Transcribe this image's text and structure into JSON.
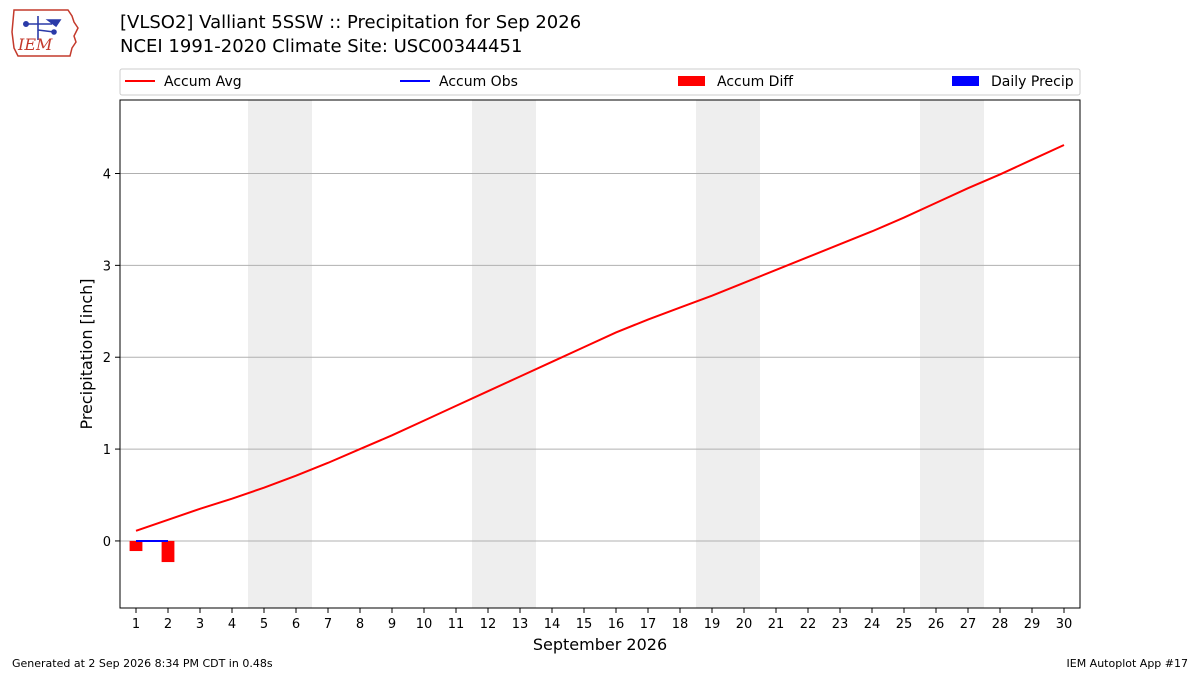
{
  "header": {
    "title_line1": "[VLSO2] Valliant 5SSW :: Precipitation for Sep 2026",
    "title_line2": "NCEI 1991-2020 Climate Site: USC00344451",
    "logo_text": "IEM"
  },
  "footer": {
    "generated": "Generated at 2 Sep 2026 8:34 PM CDT in 0.48s",
    "app": "IEM Autoplot App #17"
  },
  "colors": {
    "accum_avg": "#ff0000",
    "accum_obs": "#0000ff",
    "accum_diff": "#ff0000",
    "daily_precip": "#0000ff",
    "weekend_shade": "#eeeeee",
    "grid": "#b0b0b0"
  },
  "chart_data": {
    "type": "line",
    "xlabel": "September 2026",
    "ylabel": "Precipitation [inch]",
    "x": [
      1,
      2,
      3,
      4,
      5,
      6,
      7,
      8,
      9,
      10,
      11,
      12,
      13,
      14,
      15,
      16,
      17,
      18,
      19,
      20,
      21,
      22,
      23,
      24,
      25,
      26,
      27,
      28,
      29,
      30
    ],
    "xlim": [
      0.5,
      30.5
    ],
    "ylim": [
      -0.73,
      4.8
    ],
    "yticks": [
      0,
      1,
      2,
      3,
      4
    ],
    "grid": "horizontal",
    "legend_position": "top",
    "legend": [
      {
        "label": "Accum Avg",
        "kind": "line",
        "color": "#ff0000"
      },
      {
        "label": "Accum Obs",
        "kind": "line",
        "color": "#0000ff"
      },
      {
        "label": "Accum Diff",
        "kind": "bar",
        "color": "#ff0000"
      },
      {
        "label": "Daily Precip",
        "kind": "bar",
        "color": "#0000ff"
      }
    ],
    "weekend_days": [
      5,
      6,
      12,
      13,
      19,
      20,
      26,
      27
    ],
    "series": [
      {
        "name": "Accum Avg",
        "type": "line",
        "values": [
          0.11,
          0.23,
          0.35,
          0.46,
          0.58,
          0.71,
          0.85,
          1.0,
          1.15,
          1.31,
          1.47,
          1.63,
          1.79,
          1.95,
          2.11,
          2.27,
          2.41,
          2.54,
          2.67,
          2.81,
          2.95,
          3.09,
          3.23,
          3.37,
          3.52,
          3.68,
          3.84,
          3.99,
          4.15,
          4.31
        ]
      },
      {
        "name": "Accum Obs",
        "type": "line",
        "x": [
          1,
          2
        ],
        "values": [
          0.0,
          0.0
        ]
      },
      {
        "name": "Accum Diff",
        "type": "bar",
        "x": [
          1,
          2
        ],
        "values": [
          -0.11,
          -0.23
        ]
      },
      {
        "name": "Daily Precip",
        "type": "bar",
        "x": [
          1,
          2
        ],
        "values": [
          0.0,
          0.0
        ]
      }
    ]
  }
}
